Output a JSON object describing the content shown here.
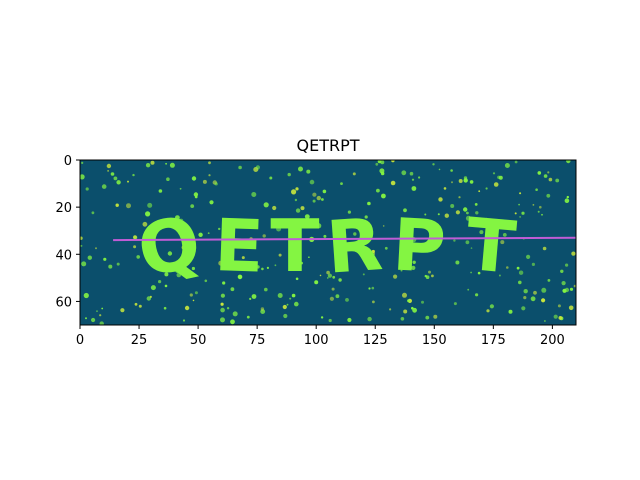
{
  "chart_data": {
    "type": "heatmap",
    "title": "QETRPT",
    "xlabel": "",
    "ylabel": "",
    "xlim": [
      0,
      210
    ],
    "ylim": [
      70,
      0
    ],
    "x_ticks": [
      0,
      25,
      50,
      75,
      100,
      125,
      150,
      175,
      200
    ],
    "y_ticks": [
      0,
      20,
      40,
      60
    ],
    "grid": false,
    "image": {
      "text": "QETRPT",
      "background_color": "#0b4f6c",
      "foreground_color": "#84f542"
    },
    "line": {
      "color": "#c05cd6",
      "x": [
        14,
        210
      ],
      "y": [
        34,
        33
      ]
    }
  }
}
